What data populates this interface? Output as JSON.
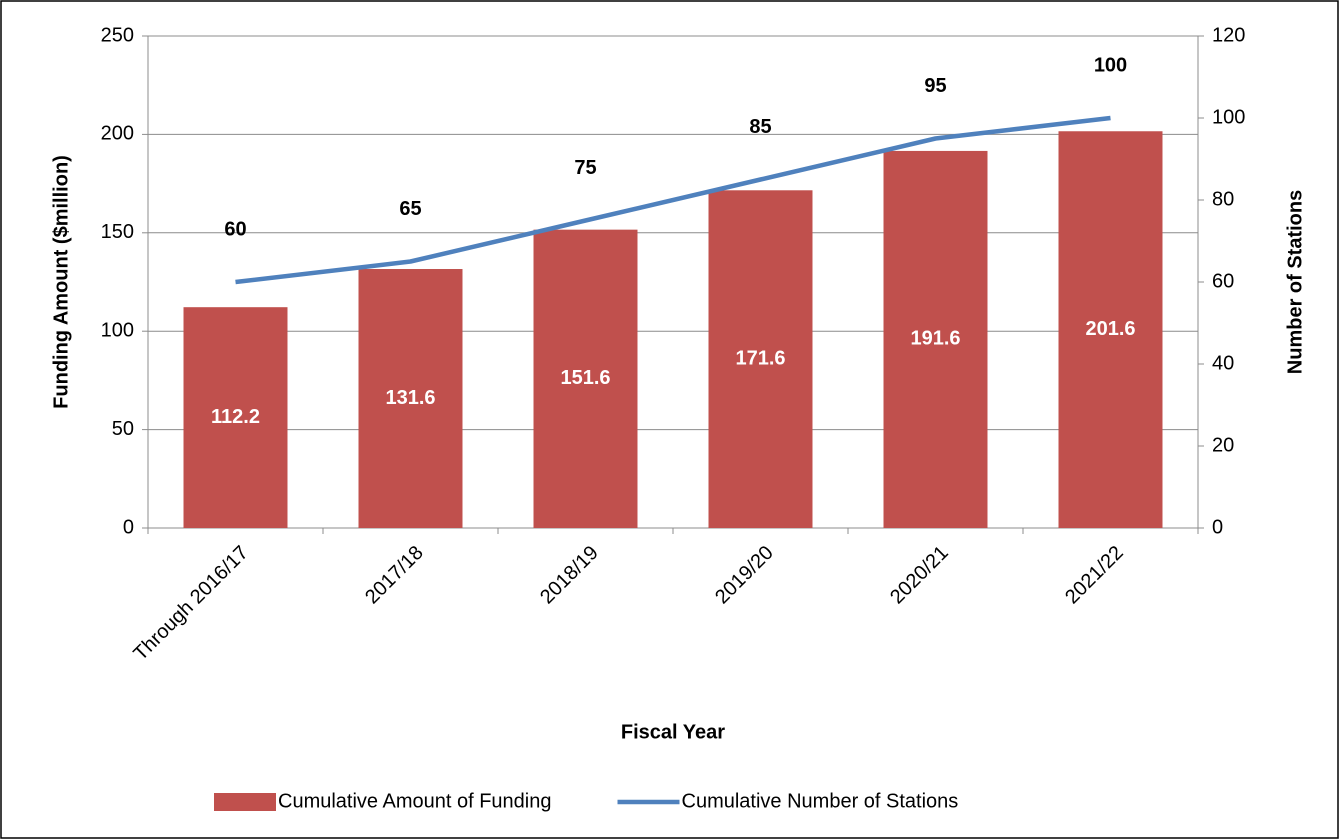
{
  "chart_data": {
    "type": "combo",
    "categories": [
      "Through 2016/17",
      "2017/18",
      "2018/19",
      "2019/20",
      "2020/21",
      "2021/22"
    ],
    "series": [
      {
        "name": "Cumulative Amount of Funding",
        "type": "bar",
        "color": "#c0504d",
        "values": [
          112.2,
          131.6,
          151.6,
          171.6,
          191.6,
          201.6
        ]
      },
      {
        "name": "Cumulative Number of Stations",
        "type": "line",
        "axis": "y2",
        "color": "#4f81bd",
        "values": [
          60,
          65,
          75,
          85,
          95,
          100
        ]
      }
    ],
    "xlabel": "Fiscal Year",
    "ylabel": "Funding Amount ($million)",
    "y2label": "Number of Stations",
    "ylim": [
      0,
      250
    ],
    "yticks": [
      0,
      50,
      100,
      150,
      200,
      250
    ],
    "y2lim": [
      0,
      120
    ],
    "y2ticks": [
      0,
      20,
      40,
      60,
      80,
      100,
      120
    ],
    "grid": true,
    "legend": "bottom"
  }
}
